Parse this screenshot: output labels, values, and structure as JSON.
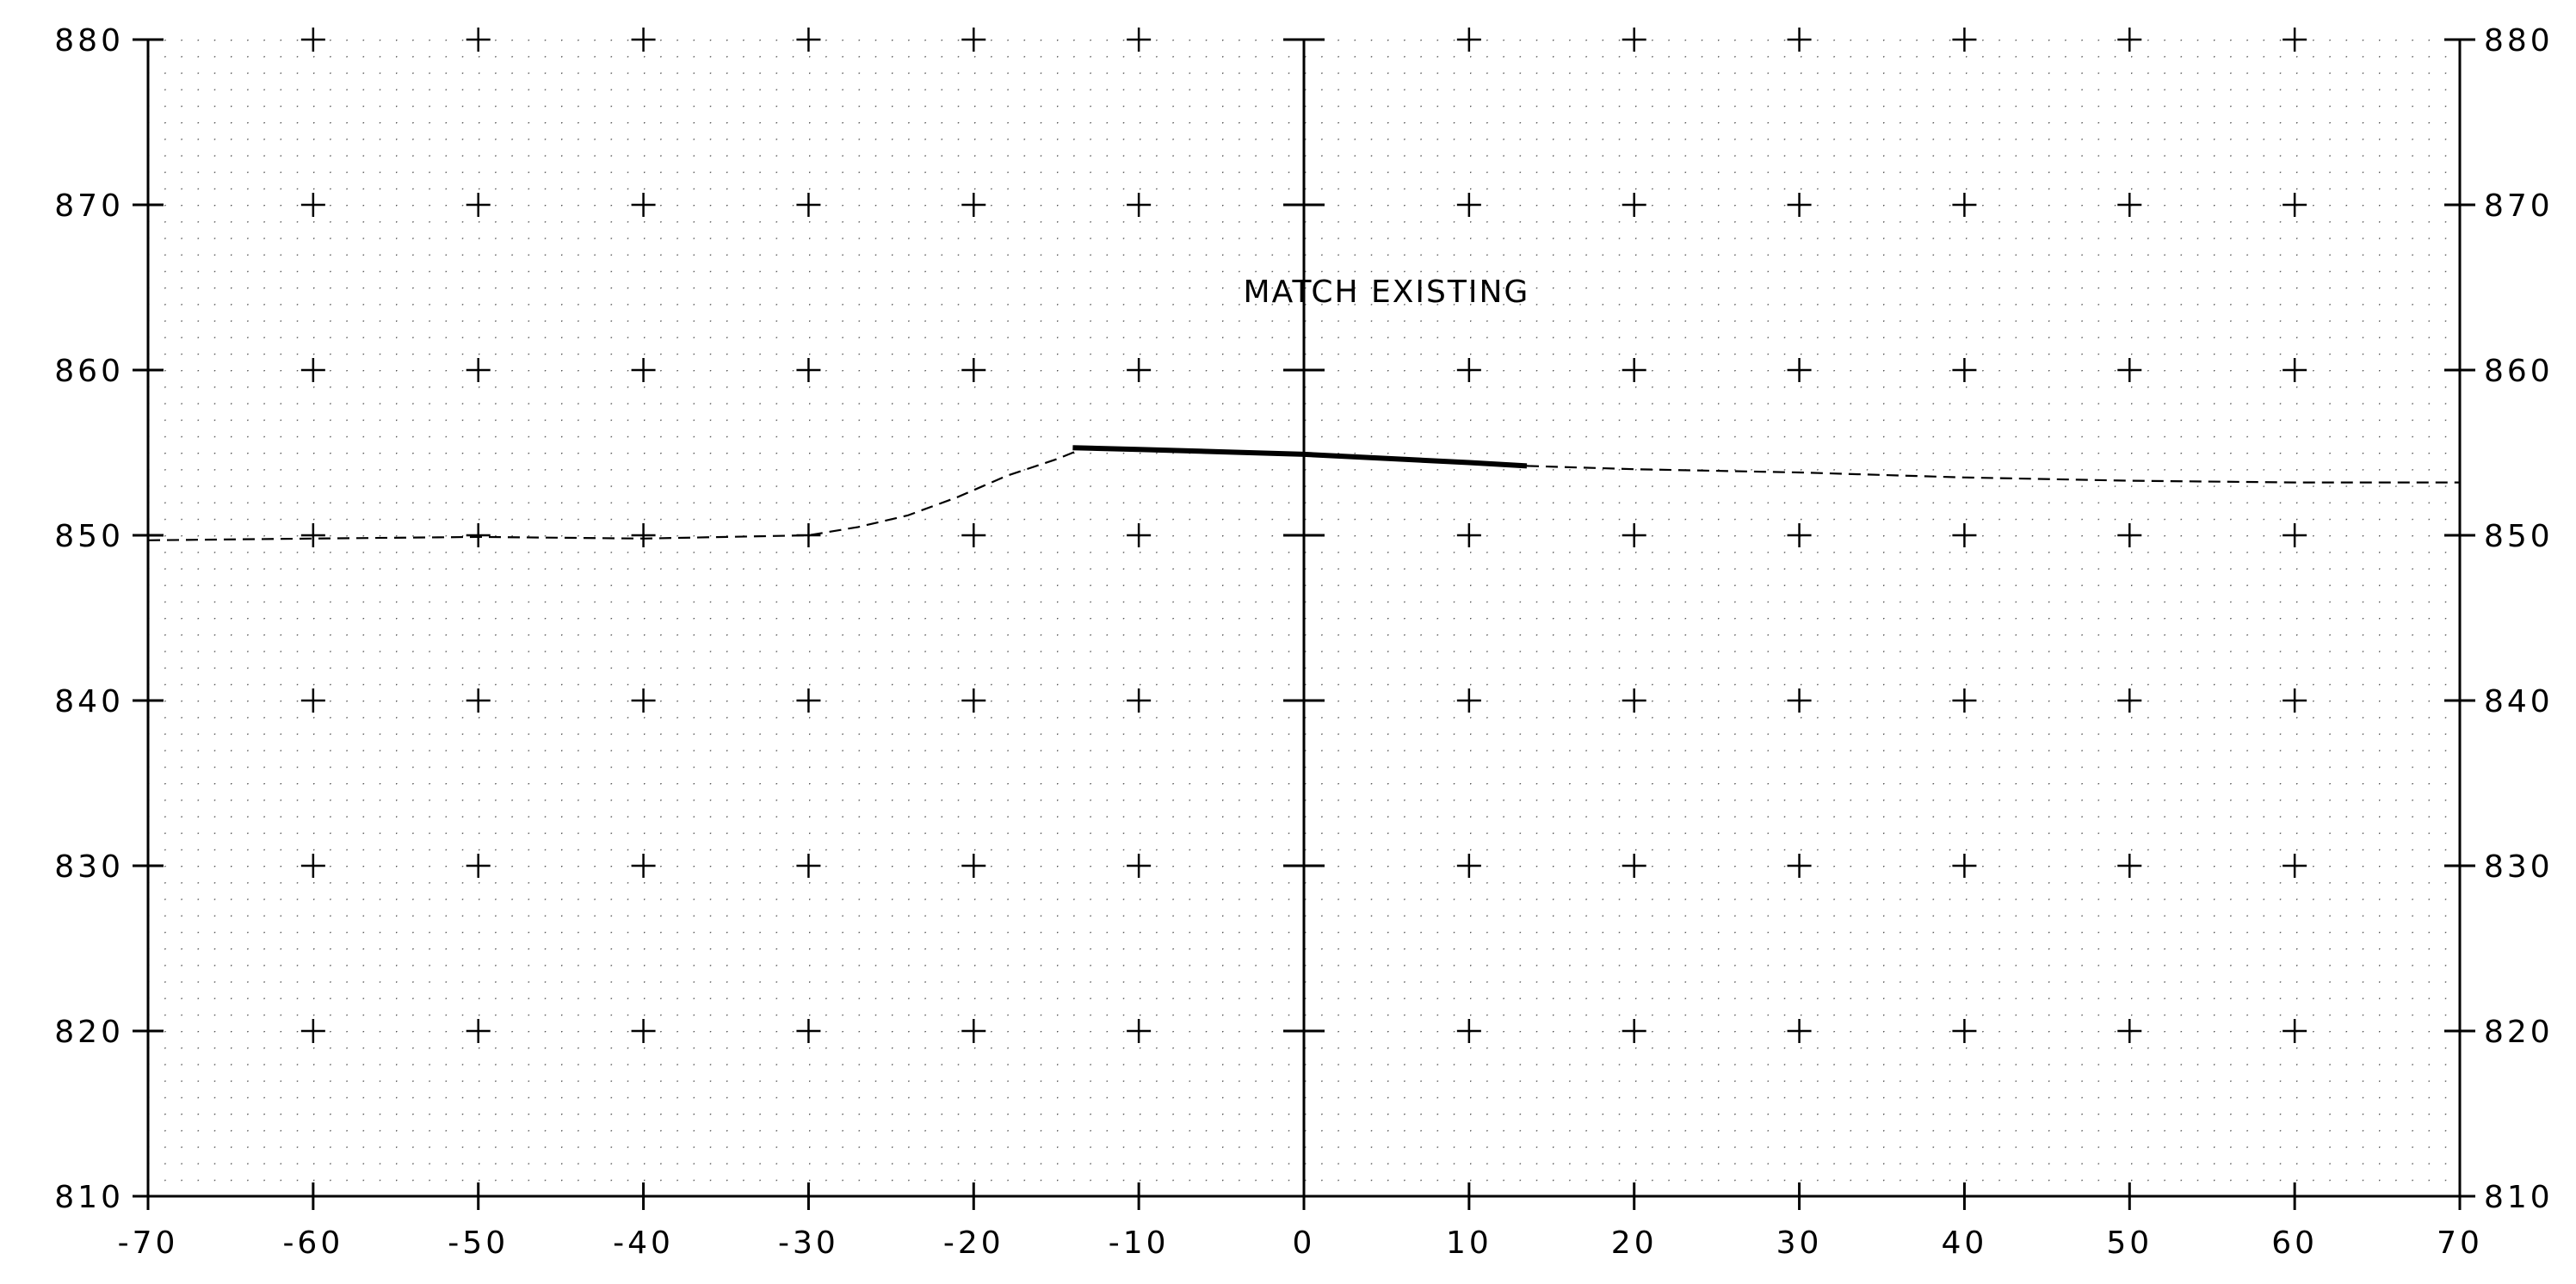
{
  "chart_data": {
    "type": "line",
    "title": "",
    "xlabel": "",
    "ylabel": "",
    "xlim": [
      -70,
      70
    ],
    "ylim": [
      810,
      880
    ],
    "x_ticks": [
      -70,
      -60,
      -50,
      -40,
      -30,
      -20,
      -10,
      0,
      10,
      20,
      30,
      40,
      50,
      60,
      70
    ],
    "x_tick_labels": [
      "-70",
      "-60",
      "-50",
      "-40",
      "-30",
      "-20",
      "-10",
      "0",
      "10",
      "20",
      "30",
      "40",
      "50",
      "60",
      "70"
    ],
    "y_ticks": [
      810,
      820,
      830,
      840,
      850,
      860,
      870,
      880
    ],
    "y_tick_labels": [
      "810",
      "820",
      "830",
      "840",
      "850",
      "860",
      "870",
      "880"
    ],
    "grid": "dotted with cross markers",
    "series": [
      {
        "style": "dashed",
        "x": [
          -70,
          -60,
          -50,
          -40,
          -30,
          -27,
          -24,
          -21,
          -18,
          -15,
          -13.5
        ],
        "y": [
          849.7,
          849.8,
          849.9,
          849.8,
          850.0,
          850.5,
          851.2,
          852.3,
          853.6,
          854.6,
          855.2
        ]
      },
      {
        "style": "solid-thick",
        "x": [
          -14,
          -10,
          0,
          10,
          13.5
        ],
        "y": [
          855.3,
          855.2,
          854.9,
          854.4,
          854.2
        ]
      },
      {
        "style": "dashed",
        "x": [
          13.5,
          20,
          30,
          40,
          50,
          60,
          70
        ],
        "y": [
          854.2,
          854.0,
          853.8,
          853.5,
          853.3,
          853.2,
          853.2
        ]
      }
    ],
    "annotations": [
      {
        "text": "MATCH EXISTING",
        "x": 5,
        "y": 864.8
      }
    ]
  },
  "colors": {
    "axis": "#000000",
    "grid_dot": "#555555",
    "line": "#000000",
    "background": "#ffffff"
  }
}
